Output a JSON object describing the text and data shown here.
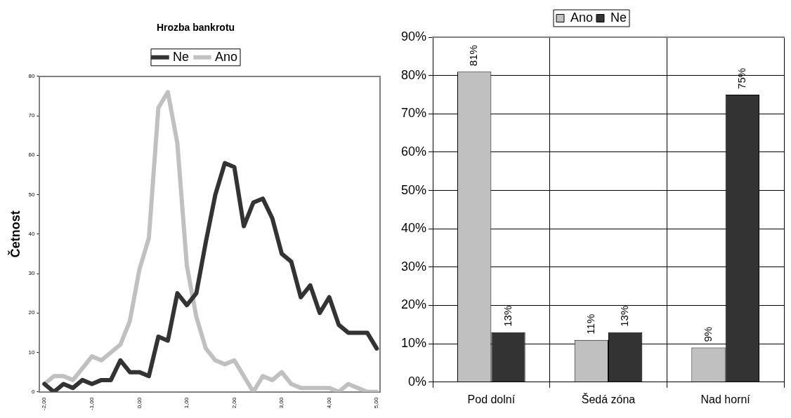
{
  "chart_data": [
    {
      "type": "line",
      "title": "Hrozba bankrotu",
      "ylabel": "Četnost",
      "x": [
        -2.0,
        -1.8,
        -1.6,
        -1.4,
        -1.2,
        -1.0,
        -0.8,
        -0.6,
        -0.4,
        -0.2,
        0.0,
        0.2,
        0.4,
        0.6,
        0.8,
        1.0,
        1.2,
        1.4,
        1.6,
        1.8,
        2.0,
        2.2,
        2.4,
        2.6,
        2.8,
        3.0,
        3.2,
        3.4,
        3.6,
        3.8,
        4.0,
        4.2,
        4.4,
        4.6,
        4.8,
        5.0
      ],
      "series": [
        {
          "name": "Ne",
          "color": "#333333",
          "values": [
            2,
            0,
            2,
            1,
            3,
            2,
            3,
            3,
            8,
            5,
            5,
            4,
            14,
            13,
            25,
            22,
            25,
            38,
            50,
            58,
            57,
            42,
            48,
            49,
            44,
            35,
            33,
            24,
            27,
            20,
            24,
            17,
            15,
            15,
            15,
            11
          ]
        },
        {
          "name": "Ano",
          "color": "#c0c0c0",
          "values": [
            2,
            4,
            4,
            3,
            6,
            9,
            8,
            10,
            12,
            18,
            31,
            39,
            72,
            76,
            63,
            32,
            19,
            11,
            8,
            7,
            8,
            4,
            0,
            4,
            3,
            5,
            2,
            1,
            1,
            1,
            1,
            0,
            2,
            1,
            0,
            0
          ]
        }
      ],
      "xlim": [
        -2.1,
        5.07
      ],
      "xticks": [
        {
          "value": -2,
          "label": "-2,00"
        },
        {
          "value": -1,
          "label": "-1,00"
        },
        {
          "value": 0,
          "label": "0,00"
        },
        {
          "value": 1,
          "label": "1,00"
        },
        {
          "value": 2,
          "label": "2,00"
        },
        {
          "value": 3,
          "label": "3,00"
        },
        {
          "value": 4,
          "label": "4,00"
        },
        {
          "value": 5,
          "label": "5,00"
        }
      ],
      "ylim": [
        0,
        80
      ],
      "yticks": [
        0,
        10,
        20,
        30,
        40,
        50,
        60,
        70,
        80
      ],
      "legend": "top",
      "marker": "none",
      "line_style": "solid",
      "grid": false
    },
    {
      "type": "bar",
      "categories": [
        "Pod dolní",
        "Šedá zóna",
        "Nad horní"
      ],
      "series": [
        {
          "name": "Ano",
          "color": "#c0c0c0",
          "values": [
            81,
            11,
            9
          ],
          "value_labels": [
            "81%",
            "11%",
            "9%"
          ]
        },
        {
          "name": "Ne",
          "color": "#333333",
          "values": [
            13,
            13,
            75
          ],
          "value_labels": [
            "13%",
            "13%",
            "75%"
          ]
        }
      ],
      "ylim": [
        0,
        90
      ],
      "yticks": [
        {
          "value": 0,
          "label": "0%"
        },
        {
          "value": 10,
          "label": "10%"
        },
        {
          "value": 20,
          "label": "20%"
        },
        {
          "value": 30,
          "label": "30%"
        },
        {
          "value": 40,
          "label": "40%"
        },
        {
          "value": 50,
          "label": "50%"
        },
        {
          "value": 60,
          "label": "60%"
        },
        {
          "value": 70,
          "label": "70%"
        },
        {
          "value": 80,
          "label": "80%"
        },
        {
          "value": 90,
          "label": "90%"
        }
      ],
      "legend": "top",
      "grid": true
    }
  ]
}
